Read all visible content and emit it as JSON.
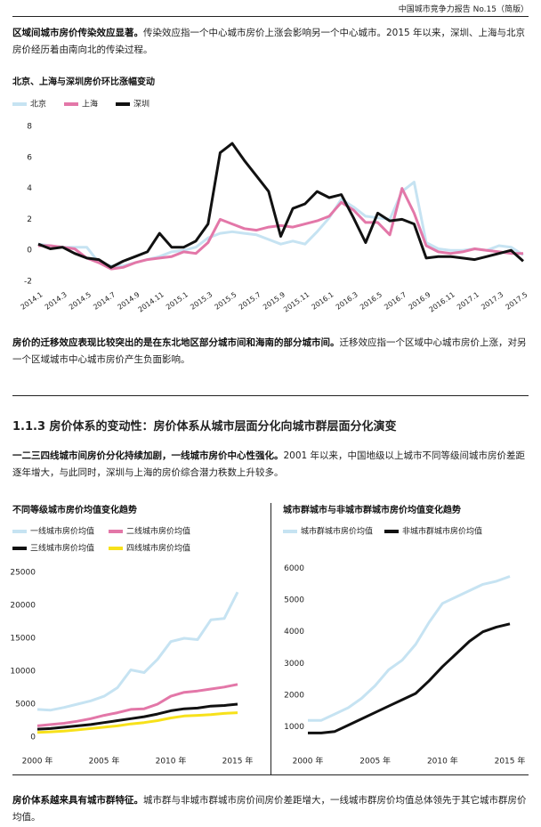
{
  "header": {
    "title": "中国城市竞争力报告 No.15（简版）"
  },
  "paragraphs": [
    {
      "lead": "区域间城市房价传染效应显著。",
      "text": "传染效应指一个中心城市房价上涨会影响另一个中心城市。2015 年以来，深圳、上海与北京房价经历着由南向北的传染过程。"
    },
    {
      "lead": "房价的迁移效应表现比较突出的是在东北地区部分城市间和海南的部分城市间。",
      "text": "迁移效应指一个区域中心城市房价上涨，对另一个区域城市中心城市房价产生负面影响。"
    },
    {
      "lead": "一二三四线城市间房价分化持续加剧，一线城市房价中心性强化。",
      "text": "2001 年以来，中国地级以上城市不同等级间城市房价差距逐年增大，与此同时，深圳与上海的房价综合潜力秩数上升较多。"
    },
    {
      "lead": "房价体系越来具有城市群特征。",
      "text": "城市群与非城市群城市房价间房价差距增大，一线城市群房价均值总体领先于其它城市群房价均值。"
    }
  ],
  "section": {
    "heading": "1.1.3 房价体系的变动性：房价体系从城市层面分化向城市群层面分化演变"
  },
  "chart_data": [
    {
      "type": "line",
      "title": "北京、上海与深圳房价环比涨幅变动",
      "categories": [
        "2014.1",
        null,
        "2014.3",
        null,
        "2014.5",
        null,
        "2014.7",
        null,
        "2014.9",
        null,
        "2014.11",
        null,
        "2015.1",
        null,
        "2015.3",
        null,
        "2015.5",
        null,
        "2015.7",
        null,
        "2015.9",
        null,
        "2015.11",
        null,
        "2016.1",
        null,
        "2016.3",
        null,
        "2016.5",
        null,
        "2016.7",
        null,
        "2016.9",
        null,
        "2016.11",
        null,
        "2017.1",
        null,
        "2017.3",
        null,
        "2017.5"
      ],
      "ylim": [
        -2,
        8
      ],
      "yticks": [
        8,
        6,
        4,
        2,
        0,
        -2
      ],
      "grid": false,
      "series": [
        {
          "name": "北京",
          "color": "#c6e3f2",
          "values": [
            0.4,
            0.3,
            0.2,
            0.2,
            0.2,
            -0.8,
            -1.0,
            -1.0,
            -0.8,
            -0.6,
            -0.4,
            -0.1,
            0.0,
            0.2,
            0.8,
            1.1,
            1.2,
            1.1,
            1.0,
            0.7,
            0.4,
            0.6,
            0.4,
            1.2,
            2.1,
            3.3,
            2.8,
            2.2,
            2.1,
            2.0,
            3.8,
            4.4,
            0.5,
            0.1,
            0.0,
            0.0,
            0.1,
            0.0,
            0.3,
            0.2,
            -0.3
          ]
        },
        {
          "name": "上海",
          "color": "#e377a8",
          "values": [
            0.3,
            0.3,
            0.2,
            0.1,
            -0.5,
            -0.8,
            -1.2,
            -1.1,
            -0.8,
            -0.6,
            -0.5,
            -0.4,
            -0.1,
            -0.2,
            0.5,
            2.0,
            1.7,
            1.4,
            1.3,
            1.5,
            1.6,
            1.5,
            1.7,
            1.9,
            2.2,
            3.1,
            2.6,
            1.8,
            1.8,
            1.0,
            4.0,
            2.4,
            0.3,
            -0.1,
            -0.2,
            -0.1,
            0.1,
            0.0,
            -0.1,
            -0.2,
            -0.2
          ]
        },
        {
          "name": "深圳",
          "color": "#111111",
          "values": [
            0.4,
            0.1,
            0.2,
            -0.2,
            -0.5,
            -0.6,
            -1.1,
            -0.7,
            -0.4,
            -0.1,
            1.1,
            0.2,
            0.2,
            0.6,
            1.7,
            6.3,
            6.9,
            5.8,
            4.8,
            3.8,
            0.9,
            2.7,
            3.0,
            3.8,
            3.4,
            3.6,
            2.1,
            0.5,
            2.4,
            1.9,
            2.0,
            1.7,
            -0.5,
            -0.4,
            -0.4,
            -0.5,
            -0.6,
            -0.4,
            -0.2,
            0.0,
            -0.7
          ]
        }
      ]
    },
    {
      "type": "line",
      "title": "不同等级城市房价均值变化趋势",
      "x": [
        2000,
        2001,
        2002,
        2003,
        2004,
        2005,
        2006,
        2007,
        2008,
        2009,
        2010,
        2011,
        2012,
        2013,
        2014,
        2015
      ],
      "xlim": [
        2000,
        2015
      ],
      "xticks": [
        {
          "value": 2000,
          "label": "2000 年"
        },
        {
          "value": 2005,
          "label": "2005 年"
        },
        {
          "value": 2010,
          "label": "2010 年"
        },
        {
          "value": 2015,
          "label": "2015 年"
        }
      ],
      "ylim": [
        0,
        25000
      ],
      "yticks": [
        25000,
        20000,
        15000,
        10000,
        5000,
        0
      ],
      "grid": false,
      "series": [
        {
          "name": "一线城市房价均值",
          "color": "#c6e3f2",
          "values": [
            4200,
            4100,
            4500,
            5000,
            5500,
            6200,
            7500,
            10200,
            9800,
            11800,
            14500,
            15000,
            14800,
            17800,
            18000,
            22000
          ]
        },
        {
          "name": "二线城市房价均值",
          "color": "#e377a8",
          "values": [
            1700,
            1900,
            2100,
            2400,
            2800,
            3300,
            3700,
            4200,
            4300,
            5000,
            6200,
            6800,
            7000,
            7300,
            7600,
            8000
          ]
        },
        {
          "name": "三线城市房价均值",
          "color": "#111111",
          "values": [
            1200,
            1300,
            1500,
            1700,
            1900,
            2200,
            2500,
            2800,
            3100,
            3500,
            4000,
            4300,
            4400,
            4700,
            4800,
            5000
          ]
        },
        {
          "name": "四线城市房价均值",
          "color": "#f7e11a",
          "values": [
            700,
            800,
            900,
            1100,
            1300,
            1500,
            1700,
            2000,
            2200,
            2500,
            2900,
            3200,
            3300,
            3400,
            3600,
            3700
          ]
        }
      ]
    },
    {
      "type": "line",
      "title": "城市群城市与非城市群城市房价均值变化趋势",
      "x": [
        2000,
        2001,
        2002,
        2003,
        2004,
        2005,
        2006,
        2007,
        2008,
        2009,
        2010,
        2011,
        2012,
        2013,
        2014,
        2015
      ],
      "xlim": [
        2000,
        2015
      ],
      "xticks": [
        {
          "value": 2000,
          "label": "2000 年"
        },
        {
          "value": 2005,
          "label": "2005 年"
        },
        {
          "value": 2010,
          "label": "2010 年"
        },
        {
          "value": 2015,
          "label": "2015 年"
        }
      ],
      "ylim": [
        700,
        6300
      ],
      "yticks": [
        6000,
        5000,
        4000,
        3000,
        2000,
        1000
      ],
      "grid": false,
      "series": [
        {
          "name": "城市群城市房价均值",
          "color": "#c6e3f2",
          "values": [
            1200,
            1200,
            1400,
            1600,
            1900,
            2300,
            2800,
            3100,
            3600,
            4300,
            4900,
            5100,
            5300,
            5500,
            5600,
            5750
          ]
        },
        {
          "name": "非城市群城市房价均值",
          "color": "#111111",
          "values": [
            800,
            800,
            850,
            1050,
            1250,
            1450,
            1650,
            1850,
            2050,
            2450,
            2900,
            3300,
            3700,
            4000,
            4150,
            4250
          ]
        }
      ]
    }
  ]
}
